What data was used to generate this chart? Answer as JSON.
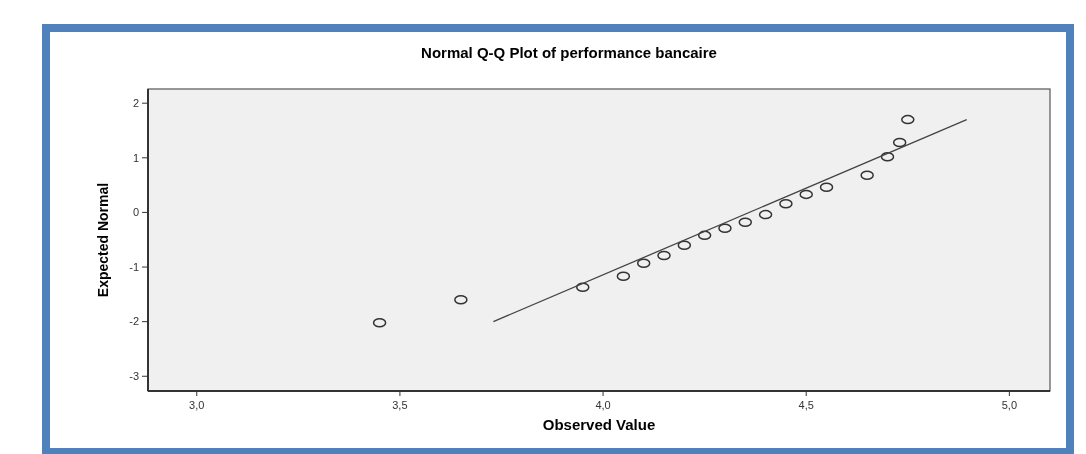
{
  "chart_data": {
    "type": "scatter",
    "title": "Normal Q-Q Plot of performance bancaire",
    "xlabel": "Observed Value",
    "ylabel": "Expected Normal",
    "xlim": [
      2.88,
      5.1
    ],
    "ylim": [
      -3.27,
      2.26
    ],
    "xticks": [
      {
        "value": 3,
        "label": "3,0"
      },
      {
        "value": 3.5,
        "label": "3,5"
      },
      {
        "value": 4,
        "label": "4,0"
      },
      {
        "value": 4.5,
        "label": "4,5"
      },
      {
        "value": 5,
        "label": "5,0"
      }
    ],
    "yticks": [
      2,
      1,
      0,
      -1,
      -2,
      -3
    ],
    "grid": false,
    "series": [
      {
        "color": "#333333",
        "marker": "circle",
        "x": [
          3.45,
          3.65,
          3.95,
          4.05,
          4.1,
          4.15,
          4.2,
          4.25,
          4.3,
          4.35,
          4.4,
          4.45,
          4.5,
          4.55,
          4.65,
          4.7,
          4.73,
          4.75
        ],
        "values": [
          -2.02,
          -1.6,
          -1.37,
          -1.17,
          -0.93,
          -0.79,
          -0.6,
          -0.42,
          -0.29,
          -0.18,
          -0.04,
          0.16,
          0.33,
          0.46,
          0.68,
          1.02,
          1.28,
          1.7
        ]
      },
      {
        "type": "line",
        "color": "#444444",
        "line_style": "solid",
        "x": [
          3.73,
          4.895
        ],
        "values": [
          -2.0,
          1.7
        ]
      }
    ]
  }
}
